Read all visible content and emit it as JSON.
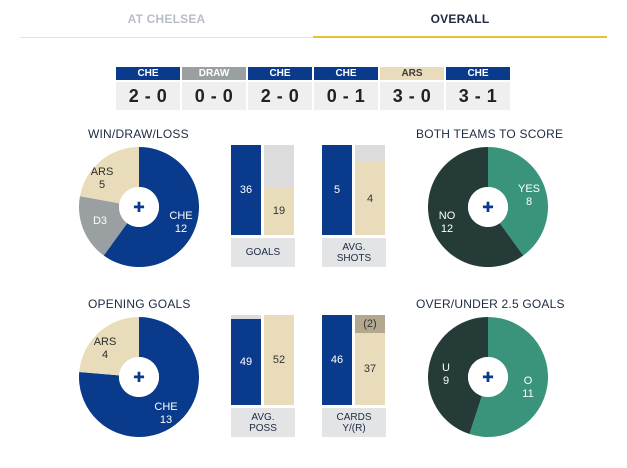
{
  "tabs": {
    "left_label": "AT CHELSEA",
    "right_label": "OVERALL"
  },
  "colors": {
    "chelsea": "#0a3a8c",
    "arsenal": "#e9dcbb",
    "draw": "#9a9fa2",
    "btts_yes": "#3a947b",
    "btts_no": "#243b38",
    "empty": "#dcdcdc",
    "red_cards": "#b3a78f",
    "tab_active_underline": "#e4c335"
  },
  "results": [
    {
      "team": "CHE",
      "score": "2 - 0"
    },
    {
      "team": "DRAW",
      "score": "0 - 0"
    },
    {
      "team": "CHE",
      "score": "2 - 0"
    },
    {
      "team": "CHE",
      "score": "0 - 1"
    },
    {
      "team": "ARS",
      "score": "3 - 0"
    },
    {
      "team": "CHE",
      "score": "3 - 1"
    }
  ],
  "wdl": {
    "title": "WIN/DRAW/LOSS",
    "che_label": "CHE",
    "che_value": 12,
    "ars_label": "ARS",
    "ars_value": 5,
    "draw_label": "D3",
    "draw_value": 3
  },
  "btts": {
    "title": "BOTH TEAMS TO SCORE",
    "yes_label": "YES",
    "yes_value": 8,
    "no_label": "NO",
    "no_value": 12
  },
  "opening": {
    "title": "OPENING GOALS",
    "che_label": "CHE",
    "che_value": 13,
    "ars_label": "ARS",
    "ars_value": 4
  },
  "overunder": {
    "title": "OVER/UNDER 2.5 GOALS",
    "over_label": "O",
    "over_value": 11,
    "under_label": "U",
    "under_value": 9
  },
  "stats": {
    "goals": {
      "label1": "GOALS",
      "label2": "",
      "che": 36,
      "ars": 19,
      "che_fill": 0.72,
      "ars_fill": 0.38
    },
    "shots": {
      "label1": "AVG.",
      "label2": "SHOTS",
      "che": 5,
      "ars": 4,
      "che_fill": 0.82,
      "ars_fill": 0.82
    },
    "poss": {
      "label1": "AVG.",
      "label2": "POSS",
      "che": 49,
      "ars": 52
    },
    "cards": {
      "label1": "CARDS",
      "label2": "Y/(R)",
      "che": 46,
      "ars_yellow": 37,
      "ars_red": "(2)",
      "che_fill": 1.0,
      "ars_fill": 0.8
    }
  },
  "center_icon": "chelsea-crest-icon"
}
